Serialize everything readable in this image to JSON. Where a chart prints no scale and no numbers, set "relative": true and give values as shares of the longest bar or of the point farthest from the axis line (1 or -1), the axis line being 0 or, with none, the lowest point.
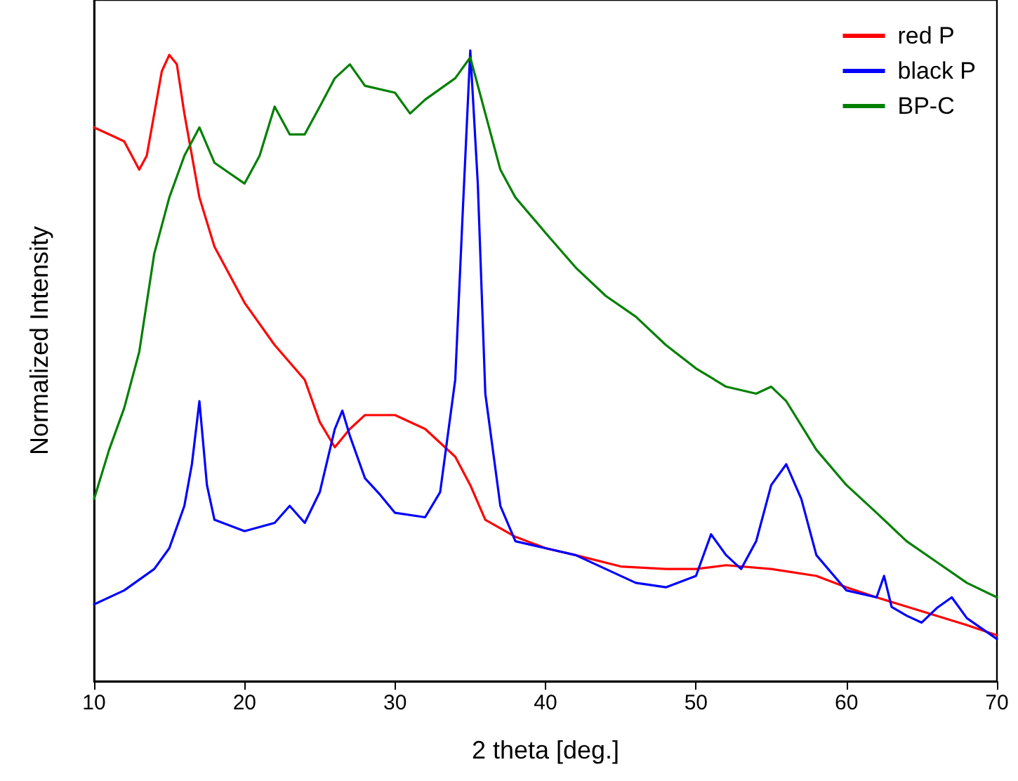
{
  "chart_data": {
    "type": "line",
    "xlabel": "2 theta [deg.]",
    "ylabel": "Normalized Intensity",
    "relative": true,
    "tick_labels": "x",
    "grid": false,
    "legend": "top right",
    "marker": "none",
    "line_style": "solid",
    "xlim": [
      10,
      70
    ],
    "xticks": [
      10,
      20,
      30,
      40,
      50,
      60,
      70
    ],
    "series": [
      {
        "name": "red P",
        "color": "#ff0000",
        "x": [
          10,
          11,
          12,
          13,
          13.5,
          14,
          14.5,
          15,
          15.5,
          16,
          17,
          18,
          20,
          22,
          24,
          25,
          26,
          27,
          28,
          30,
          32,
          34,
          35,
          36,
          38,
          40,
          42,
          45,
          48,
          50,
          52,
          55,
          58,
          60,
          62,
          65,
          68,
          70
        ],
        "values": [
          0.878,
          0.867,
          0.856,
          0.811,
          0.833,
          0.9,
          0.967,
          0.993,
          0.978,
          0.9,
          0.767,
          0.689,
          0.6,
          0.533,
          0.478,
          0.411,
          0.371,
          0.4,
          0.422,
          0.422,
          0.4,
          0.356,
          0.311,
          0.256,
          0.229,
          0.211,
          0.2,
          0.182,
          0.178,
          0.178,
          0.184,
          0.178,
          0.167,
          0.149,
          0.133,
          0.111,
          0.089,
          0.073
        ]
      },
      {
        "name": "black P",
        "color": "#0000ff",
        "x": [
          10,
          12,
          14,
          15,
          16,
          16.5,
          17,
          17.5,
          18,
          20,
          22,
          23,
          24,
          25,
          26,
          26.5,
          27,
          28,
          29,
          30,
          32,
          33,
          34,
          34.5,
          35,
          35.5,
          36,
          37,
          38,
          40,
          42,
          44,
          46,
          48,
          50,
          51,
          52,
          53,
          54,
          55,
          56,
          57,
          58,
          60,
          62,
          62.5,
          63,
          64,
          65,
          66,
          67,
          68,
          70
        ],
        "values": [
          0.122,
          0.144,
          0.178,
          0.211,
          0.278,
          0.344,
          0.444,
          0.311,
          0.256,
          0.238,
          0.251,
          0.278,
          0.251,
          0.3,
          0.4,
          0.429,
          0.389,
          0.322,
          0.296,
          0.267,
          0.26,
          0.3,
          0.478,
          0.744,
          1,
          0.789,
          0.456,
          0.278,
          0.222,
          0.211,
          0.2,
          0.178,
          0.156,
          0.149,
          0.167,
          0.233,
          0.2,
          0.178,
          0.222,
          0.311,
          0.344,
          0.289,
          0.2,
          0.144,
          0.133,
          0.167,
          0.118,
          0.104,
          0.093,
          0.116,
          0.133,
          0.1,
          0.067
        ]
      },
      {
        "name": "BP-C",
        "color": "#008000",
        "x": [
          10,
          11,
          12,
          13,
          14,
          15,
          16,
          17,
          18,
          20,
          21,
          22,
          23,
          24,
          25,
          26,
          27,
          28,
          30,
          31,
          32,
          34,
          35,
          36,
          37,
          38,
          40,
          42,
          44,
          46,
          48,
          50,
          52,
          54,
          55,
          56,
          58,
          60,
          62,
          64,
          66,
          68,
          70
        ],
        "values": [
          0.289,
          0.367,
          0.433,
          0.522,
          0.678,
          0.767,
          0.833,
          0.878,
          0.822,
          0.789,
          0.833,
          0.911,
          0.867,
          0.867,
          0.911,
          0.956,
          0.978,
          0.944,
          0.933,
          0.9,
          0.922,
          0.956,
          0.989,
          0.9,
          0.811,
          0.767,
          0.711,
          0.656,
          0.611,
          0.578,
          0.533,
          0.496,
          0.467,
          0.456,
          0.467,
          0.444,
          0.367,
          0.311,
          0.267,
          0.222,
          0.189,
          0.156,
          0.133
        ]
      }
    ]
  }
}
